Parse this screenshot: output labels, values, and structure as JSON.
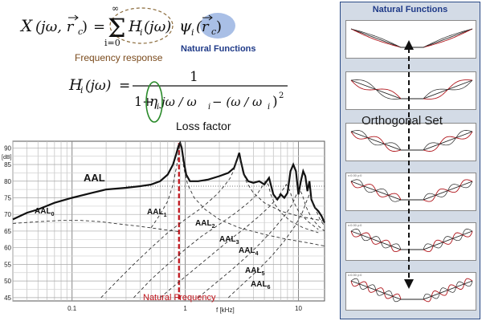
{
  "equation1": {
    "lhs_var": "X",
    "lhs_args": "(jω, r",
    "lhs_sub": "c",
    "equals": "=",
    "sum_upper": "∞",
    "sum_lower": "i=0",
    "term1": "H",
    "term1_sub": "i",
    "term1_args": "(jω)",
    "term2": "ψ",
    "term2_sub": "i",
    "term2_args": "(r",
    "term2_args_sub": "c",
    "term2_close": ")"
  },
  "labels": {
    "frequency_response": "Frequency response",
    "natural_functions_eq": "Natural Functions",
    "loss_factor": "Loss factor",
    "natural_frequency": "Natural Frequency",
    "orthogonal_set": "Orthogonal Set"
  },
  "equation2": {
    "lhs": "H",
    "lhs_sub": "i",
    "lhs_args": "(jω)",
    "equals": "=",
    "numerator": "1",
    "denominator_start": "1+",
    "eta": "η",
    "eta_sub": "i",
    "denominator_mid": "jω / ω",
    "denominator_mid_sub": "i",
    "denominator_end": " − (ω / ω",
    "denominator_end_sub": "i",
    "denominator_close": ")",
    "exponent": "2"
  },
  "chart_data": {
    "type": "line",
    "xscale": "log",
    "xlabel": "f [kHz]",
    "ylabel": "[dB]",
    "xlim": [
      0.03,
      17
    ],
    "ylim": [
      44,
      92
    ],
    "xticks": [
      {
        "value": 0.1,
        "label": "0.1"
      },
      {
        "value": 1,
        "label": "1"
      },
      {
        "value": 10,
        "label": "10"
      }
    ],
    "yticks": [
      45,
      50,
      55,
      60,
      65,
      70,
      75,
      80,
      85,
      90
    ],
    "grid": true,
    "series": [
      {
        "name": "AAL",
        "label_sub": "",
        "style": "solid-thick",
        "x": [
          0.03,
          0.04,
          0.05,
          0.07,
          0.1,
          0.15,
          0.2,
          0.3,
          0.4,
          0.5,
          0.6,
          0.7,
          0.78,
          0.83,
          0.87,
          0.9,
          0.93,
          0.97,
          1.02,
          1.1,
          1.3,
          1.6,
          2.0,
          2.4,
          2.7,
          2.9,
          3.0,
          3.1,
          3.3,
          3.6,
          4.0,
          4.5,
          5.0,
          5.5,
          6.0,
          6.5,
          7.0,
          7.5,
          8.0,
          8.5,
          9.0,
          9.5,
          10,
          10.5,
          11,
          11.5,
          12,
          12.5,
          13,
          14,
          15,
          16,
          17
        ],
        "y": [
          68.5,
          70.5,
          71.5,
          73.5,
          75,
          76.5,
          77.5,
          78,
          78.5,
          79,
          80,
          82,
          85,
          88,
          90.5,
          91.5,
          90,
          86,
          82,
          80,
          80,
          80.5,
          81.5,
          82.5,
          84,
          87,
          88.5,
          86,
          82,
          80,
          79.5,
          80,
          79,
          81,
          76,
          74.5,
          76,
          75,
          76.5,
          83,
          85,
          83,
          76,
          80,
          83,
          81.5,
          77,
          80,
          74.5,
          72,
          71,
          69.5,
          67.5
        ]
      },
      {
        "name": "AAL",
        "label_sub": "0",
        "style": "dashed",
        "x": [
          0.03,
          0.05,
          0.08,
          0.12,
          0.18,
          0.25,
          0.4,
          0.6,
          0.9
        ],
        "y": [
          67.3,
          67.8,
          68.2,
          68.2,
          67.8,
          67.2,
          66.4,
          65.6,
          64.8
        ]
      },
      {
        "name": "AAL",
        "label_sub": "1",
        "style": "dashed",
        "x": [
          0.5,
          0.6,
          0.7,
          0.78,
          0.84,
          0.88,
          0.9,
          0.93,
          0.97,
          1.05,
          1.2,
          1.5,
          2.0,
          3.0,
          5.0,
          8.0,
          12.0,
          17.0
        ],
        "y": [
          66,
          70,
          74,
          79,
          84.5,
          89.5,
          91.5,
          89,
          84,
          79,
          75,
          71.5,
          68.5,
          66,
          64,
          62.5,
          61.5,
          60.5
        ]
      },
      {
        "name": "AAL",
        "label_sub": "2",
        "style": "dashed",
        "x": [
          0.18,
          0.25,
          0.35,
          0.5,
          0.7,
          1.0,
          1.4,
          1.9,
          2.2,
          2.5,
          2.7,
          2.85,
          2.95,
          3.05,
          3.2,
          3.5,
          4.0,
          5.0,
          7.0,
          10.0,
          14.0,
          17.0
        ],
        "y": [
          45,
          50,
          55,
          60,
          64.5,
          68.5,
          72,
          76,
          78.5,
          81,
          83.5,
          86,
          87.5,
          86.5,
          83,
          79.5,
          76.5,
          73.5,
          71,
          69.5,
          68.5,
          68
        ]
      },
      {
        "name": "AAL",
        "label_sub": "3",
        "style": "dashed",
        "x": [
          0.35,
          0.5,
          0.7,
          1.0,
          1.4,
          2.0,
          2.8,
          3.6,
          4.3,
          4.8,
          5.1,
          5.4,
          5.7,
          6.2,
          7.0,
          8.5,
          11.0,
          15.0
        ],
        "y": [
          45,
          50.5,
          55,
          59.5,
          63.5,
          67,
          70.5,
          73.5,
          76,
          78.5,
          80,
          79,
          76,
          73,
          70.5,
          68,
          66,
          64.5
        ]
      },
      {
        "name": "AAL",
        "label_sub": "4",
        "style": "dashed",
        "x": [
          0.6,
          0.9,
          1.3,
          1.8,
          2.5,
          3.4,
          4.5,
          5.6,
          6.5,
          7.3,
          7.8,
          8.3,
          9.0,
          10.0,
          12.0,
          15.0
        ],
        "y": [
          45,
          50,
          54.5,
          58.5,
          62.5,
          66,
          69.5,
          72.5,
          75,
          77.5,
          79,
          77.5,
          74,
          71,
          68,
          65.5
        ]
      },
      {
        "name": "AAL",
        "label_sub": "5",
        "style": "dashed",
        "x": [
          1.3,
          1.8,
          2.5,
          3.4,
          4.5,
          6.0,
          7.5,
          8.8,
          9.6,
          10.2,
          10.8,
          11.6,
          13.0,
          15.0,
          17.0
        ],
        "y": [
          45,
          49,
          53,
          57,
          61,
          65.5,
          69.5,
          73,
          76,
          77.5,
          76,
          72.5,
          69,
          66.5,
          65
        ]
      },
      {
        "name": "AAL",
        "label_sub": "6",
        "style": "dashed",
        "x": [
          2.4,
          3.2,
          4.3,
          5.8,
          7.5,
          9.3,
          10.8,
          11.8,
          12.5,
          13.2,
          14.2,
          15.5,
          17.0
        ],
        "y": [
          45,
          49,
          53,
          57.5,
          62,
          66.5,
          70.5,
          74,
          76,
          74.5,
          71.5,
          68.5,
          66.5
        ]
      }
    ],
    "annotations": [
      {
        "type": "vline",
        "x": 0.88,
        "color": "#c0131b",
        "style": "dashed"
      },
      {
        "type": "hline",
        "y": 78.5,
        "style": "dotted"
      }
    ]
  },
  "right_panel": {
    "title": "Natural Functions",
    "panel_tag": "x:0.00 y:0",
    "modes": [
      1,
      2,
      3,
      4,
      5,
      6
    ],
    "line_color": "#222222",
    "mode_color": "#b0161c",
    "arrow_color": "#111111"
  },
  "colors": {
    "panel_bg": "#d3dbe6",
    "panel_border": "#2b4a86",
    "highlight_ellipse": "#a9bfe6",
    "frequency_response_text": "#7a4a1c",
    "natural_functions_text": "#1f3a88",
    "natural_frequency_text": "#c0131b",
    "loss_ellipse": "#2a8a2a",
    "dashed_ellipse": "#8a6a3a"
  }
}
